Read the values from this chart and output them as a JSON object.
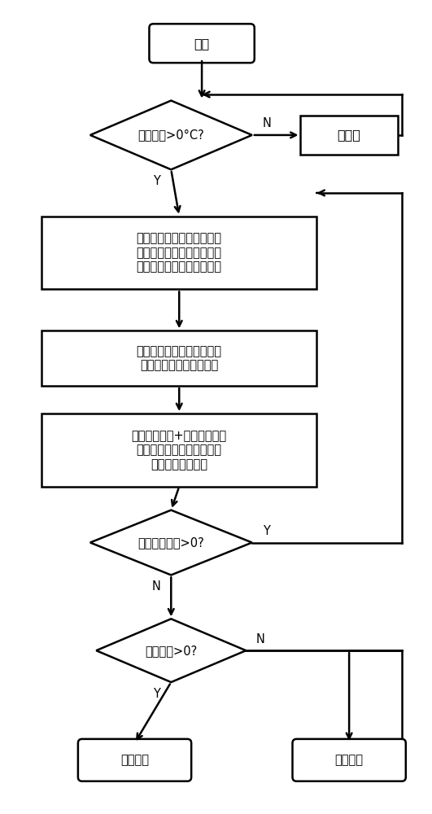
{
  "bg_color": "#ffffff",
  "line_color": "#000000",
  "text_color": "#000000",
  "font_size": 10.5,
  "start_label": "开机",
  "d1_label": "电堆温度>0°C?",
  "no_humid_label": "不增湿",
  "box1_label": "根据油门踏板开度计算驾驶\n员需求功率偏移量，由需求\n功率偏移量得到增湿补偿值",
  "box2_label": "根据空气入堆温度和电堆交\n流阻抗，得到增湿基础量",
  "box3_label": "（基础增湿量+补偿增湿量）\n和准许最大增湿量取小，得\n到最终进气增湿量",
  "d2_label": "电堆需求功率>0?",
  "d3_label": "环境温度>0?",
  "end1_label": "常温关机",
  "end2_label": "低温关机",
  "label_Y": "Y",
  "label_N": "N"
}
